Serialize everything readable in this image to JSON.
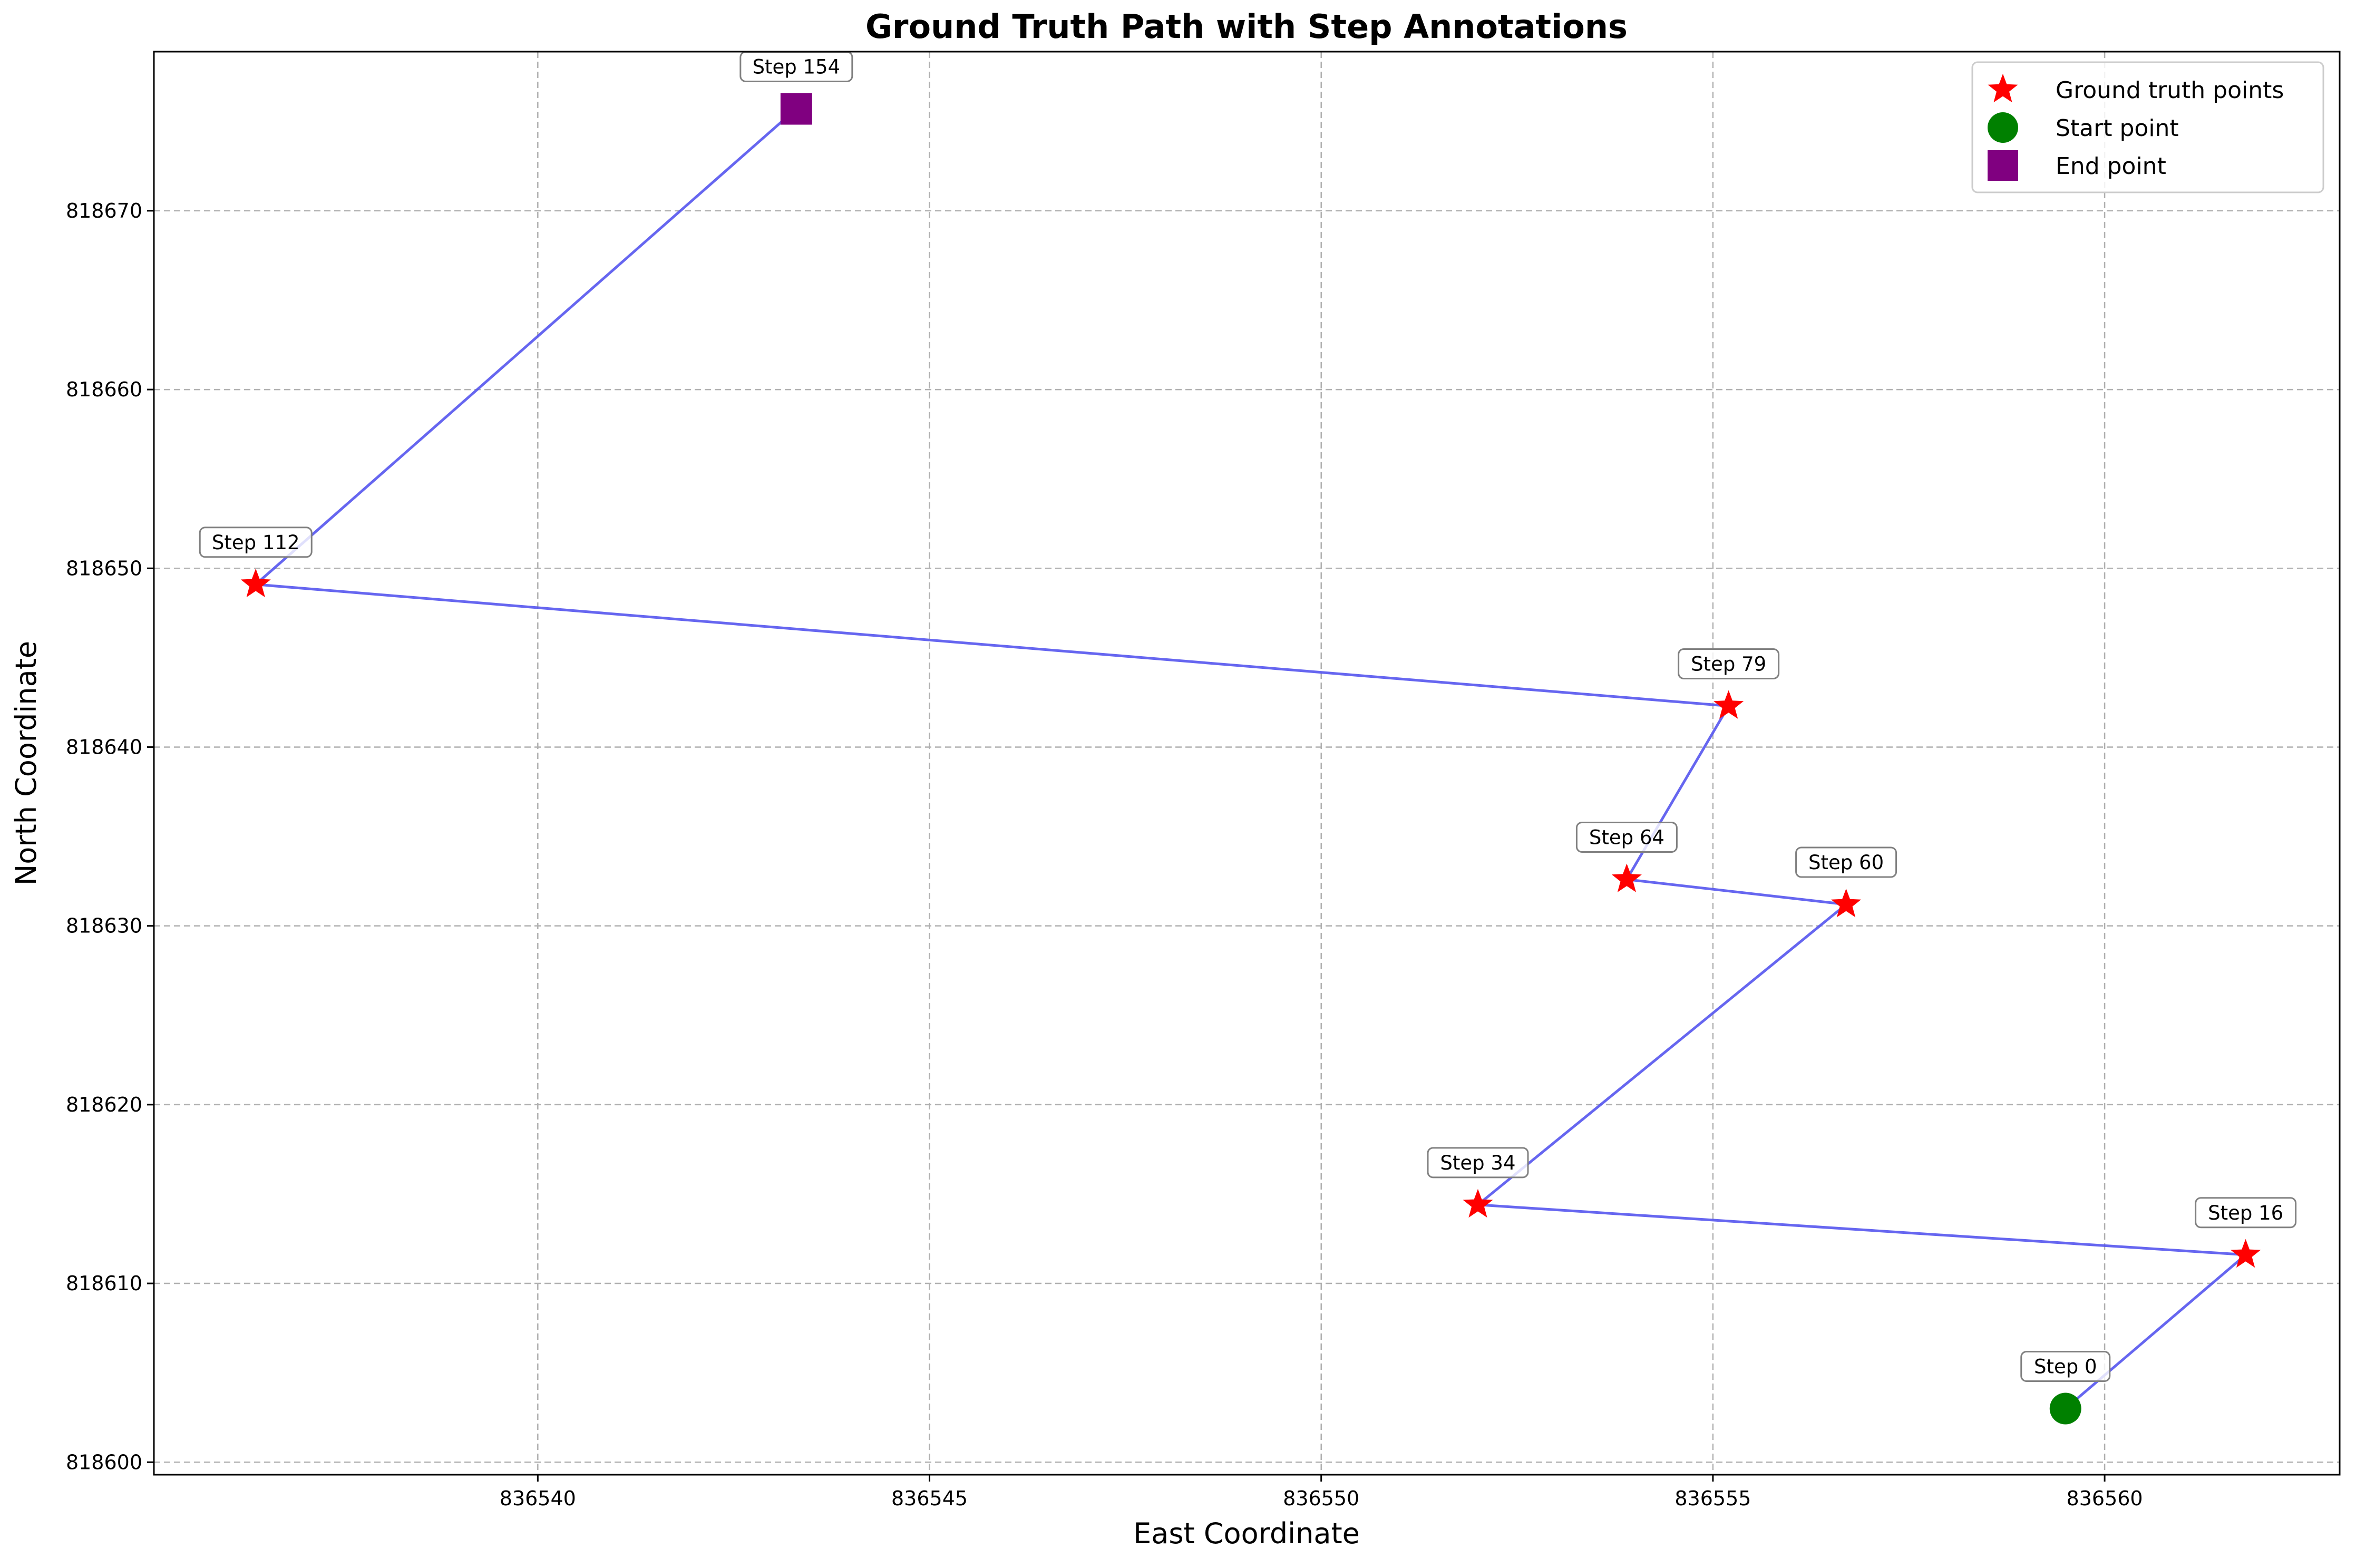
{
  "chart_data": {
    "type": "line",
    "title": "Ground Truth Path with Step Annotations",
    "xlabel": "East Coordinate",
    "ylabel": "North Coordinate",
    "xlim": [
      836535.1,
      836563.0
    ],
    "ylim": [
      818599.3,
      818678.9
    ],
    "x_ticks": [
      836540,
      836545,
      836550,
      836555,
      836560
    ],
    "y_ticks": [
      818600,
      818610,
      818620,
      818630,
      818640,
      818650,
      818660,
      818670
    ],
    "grid": true,
    "grid_style": "dashed",
    "legend_position": "top-right",
    "path": [
      {
        "step": "Step 0",
        "x": 836559.5,
        "y": 818603.0,
        "kind": "start"
      },
      {
        "step": "Step 16",
        "x": 836561.8,
        "y": 818611.6,
        "kind": "ground_truth"
      },
      {
        "step": "Step 34",
        "x": 836552.0,
        "y": 818614.4,
        "kind": "ground_truth"
      },
      {
        "step": "Step 60",
        "x": 836556.7,
        "y": 818631.2,
        "kind": "ground_truth"
      },
      {
        "step": "Step 64",
        "x": 836553.9,
        "y": 818632.6,
        "kind": "ground_truth"
      },
      {
        "step": "Step 79",
        "x": 836555.2,
        "y": 818642.3,
        "kind": "ground_truth"
      },
      {
        "step": "Step 112",
        "x": 836536.4,
        "y": 818649.1,
        "kind": "ground_truth"
      },
      {
        "step": "Step 154",
        "x": 836543.3,
        "y": 818675.7,
        "kind": "end"
      }
    ],
    "legend": [
      {
        "label": "Ground truth points",
        "marker": "star",
        "color": "#ff0000"
      },
      {
        "label": "Start point",
        "marker": "circle",
        "color": "#008000"
      },
      {
        "label": "End point",
        "marker": "square",
        "color": "#800080"
      }
    ],
    "colors": {
      "path_line": "#5555ee",
      "ground_truth": "#ff0000",
      "start": "#008000",
      "end": "#800080",
      "grid": "#b0b0b0"
    }
  }
}
